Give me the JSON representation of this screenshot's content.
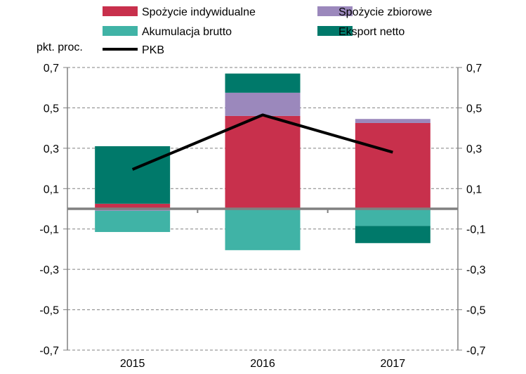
{
  "chart_data": {
    "type": "bar",
    "stacked": true,
    "categories": [
      "2015",
      "2016",
      "2017"
    ],
    "series": [
      {
        "name": "Spożycie indywidualne",
        "color": "#C8304C",
        "values": [
          0.025,
          0.46,
          0.425
        ]
      },
      {
        "name": "Spożycie zbiorowe",
        "color": "#9B88BC",
        "values": [
          -0.01,
          0.115,
          0.02
        ]
      },
      {
        "name": "Akumulacja brutto",
        "color": "#40B3A6",
        "values": [
          -0.105,
          -0.205,
          -0.085
        ]
      },
      {
        "name": "Eksport netto",
        "color": "#00796A",
        "values": [
          0.285,
          0.095,
          -0.085
        ]
      }
    ],
    "line_series": {
      "name": "PKB",
      "color": "#000000",
      "values": [
        0.195,
        0.465,
        0.28
      ]
    },
    "ylabel": "pkt. proc.",
    "ylim": [
      -0.7,
      0.7
    ],
    "yticks": [
      "0,7",
      "0,5",
      "0,3",
      "0,1",
      "-0,1",
      "-0,3",
      "-0,5",
      "-0,7"
    ],
    "ytick_values": [
      0.7,
      0.5,
      0.3,
      0.1,
      -0.1,
      -0.3,
      -0.5,
      -0.7
    ],
    "grid": true,
    "grid_style": "dashed",
    "zero_line_color": "#808080",
    "legend_position": "top",
    "secondary_y_axis": true
  }
}
